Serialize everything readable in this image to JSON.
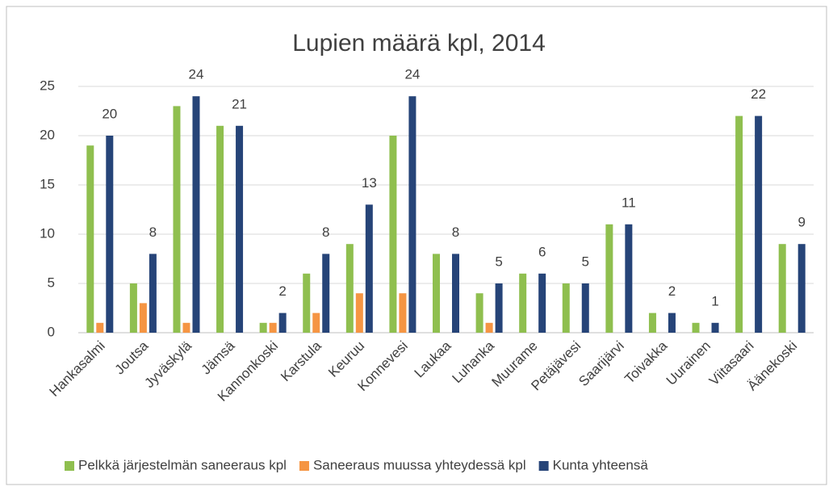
{
  "chart_data": {
    "type": "bar",
    "title": "Lupien määrä kpl, 2014",
    "categories": [
      "Hankasalmi",
      "Joutsa",
      "Jyväskylä",
      "Jämsä",
      "Kannonkoski",
      "Karstula",
      "Keuruu",
      "Konnevesi",
      "Laukaa",
      "Luhanka",
      "Muurame",
      "Petäjävesi",
      "Saarijärvi",
      "Toivakka",
      "Uurainen",
      "Viitasaari",
      "Äänekoski"
    ],
    "series": [
      {
        "name": "Pelkkä järjestelmän saneeraus kpl",
        "color": "#8fbf4f",
        "values": [
          19,
          5,
          23,
          21,
          1,
          6,
          9,
          20,
          8,
          4,
          6,
          5,
          11,
          2,
          1,
          22,
          9
        ]
      },
      {
        "name": "Saneeraus muussa yhteydessä kpl",
        "color": "#f59543",
        "values": [
          1,
          3,
          1,
          0,
          1,
          2,
          4,
          4,
          0,
          1,
          0,
          0,
          0,
          0,
          0,
          0,
          0
        ]
      },
      {
        "name": "Kunta yhteensä",
        "color": "#264478",
        "values": [
          20,
          8,
          24,
          21,
          2,
          8,
          13,
          24,
          8,
          5,
          6,
          5,
          11,
          2,
          1,
          22,
          9
        ],
        "data_labels": true
      }
    ],
    "ylim": [
      0,
      25
    ],
    "yticks": [
      0,
      5,
      10,
      15,
      20,
      25
    ],
    "grid": true,
    "legend": "bottom"
  }
}
